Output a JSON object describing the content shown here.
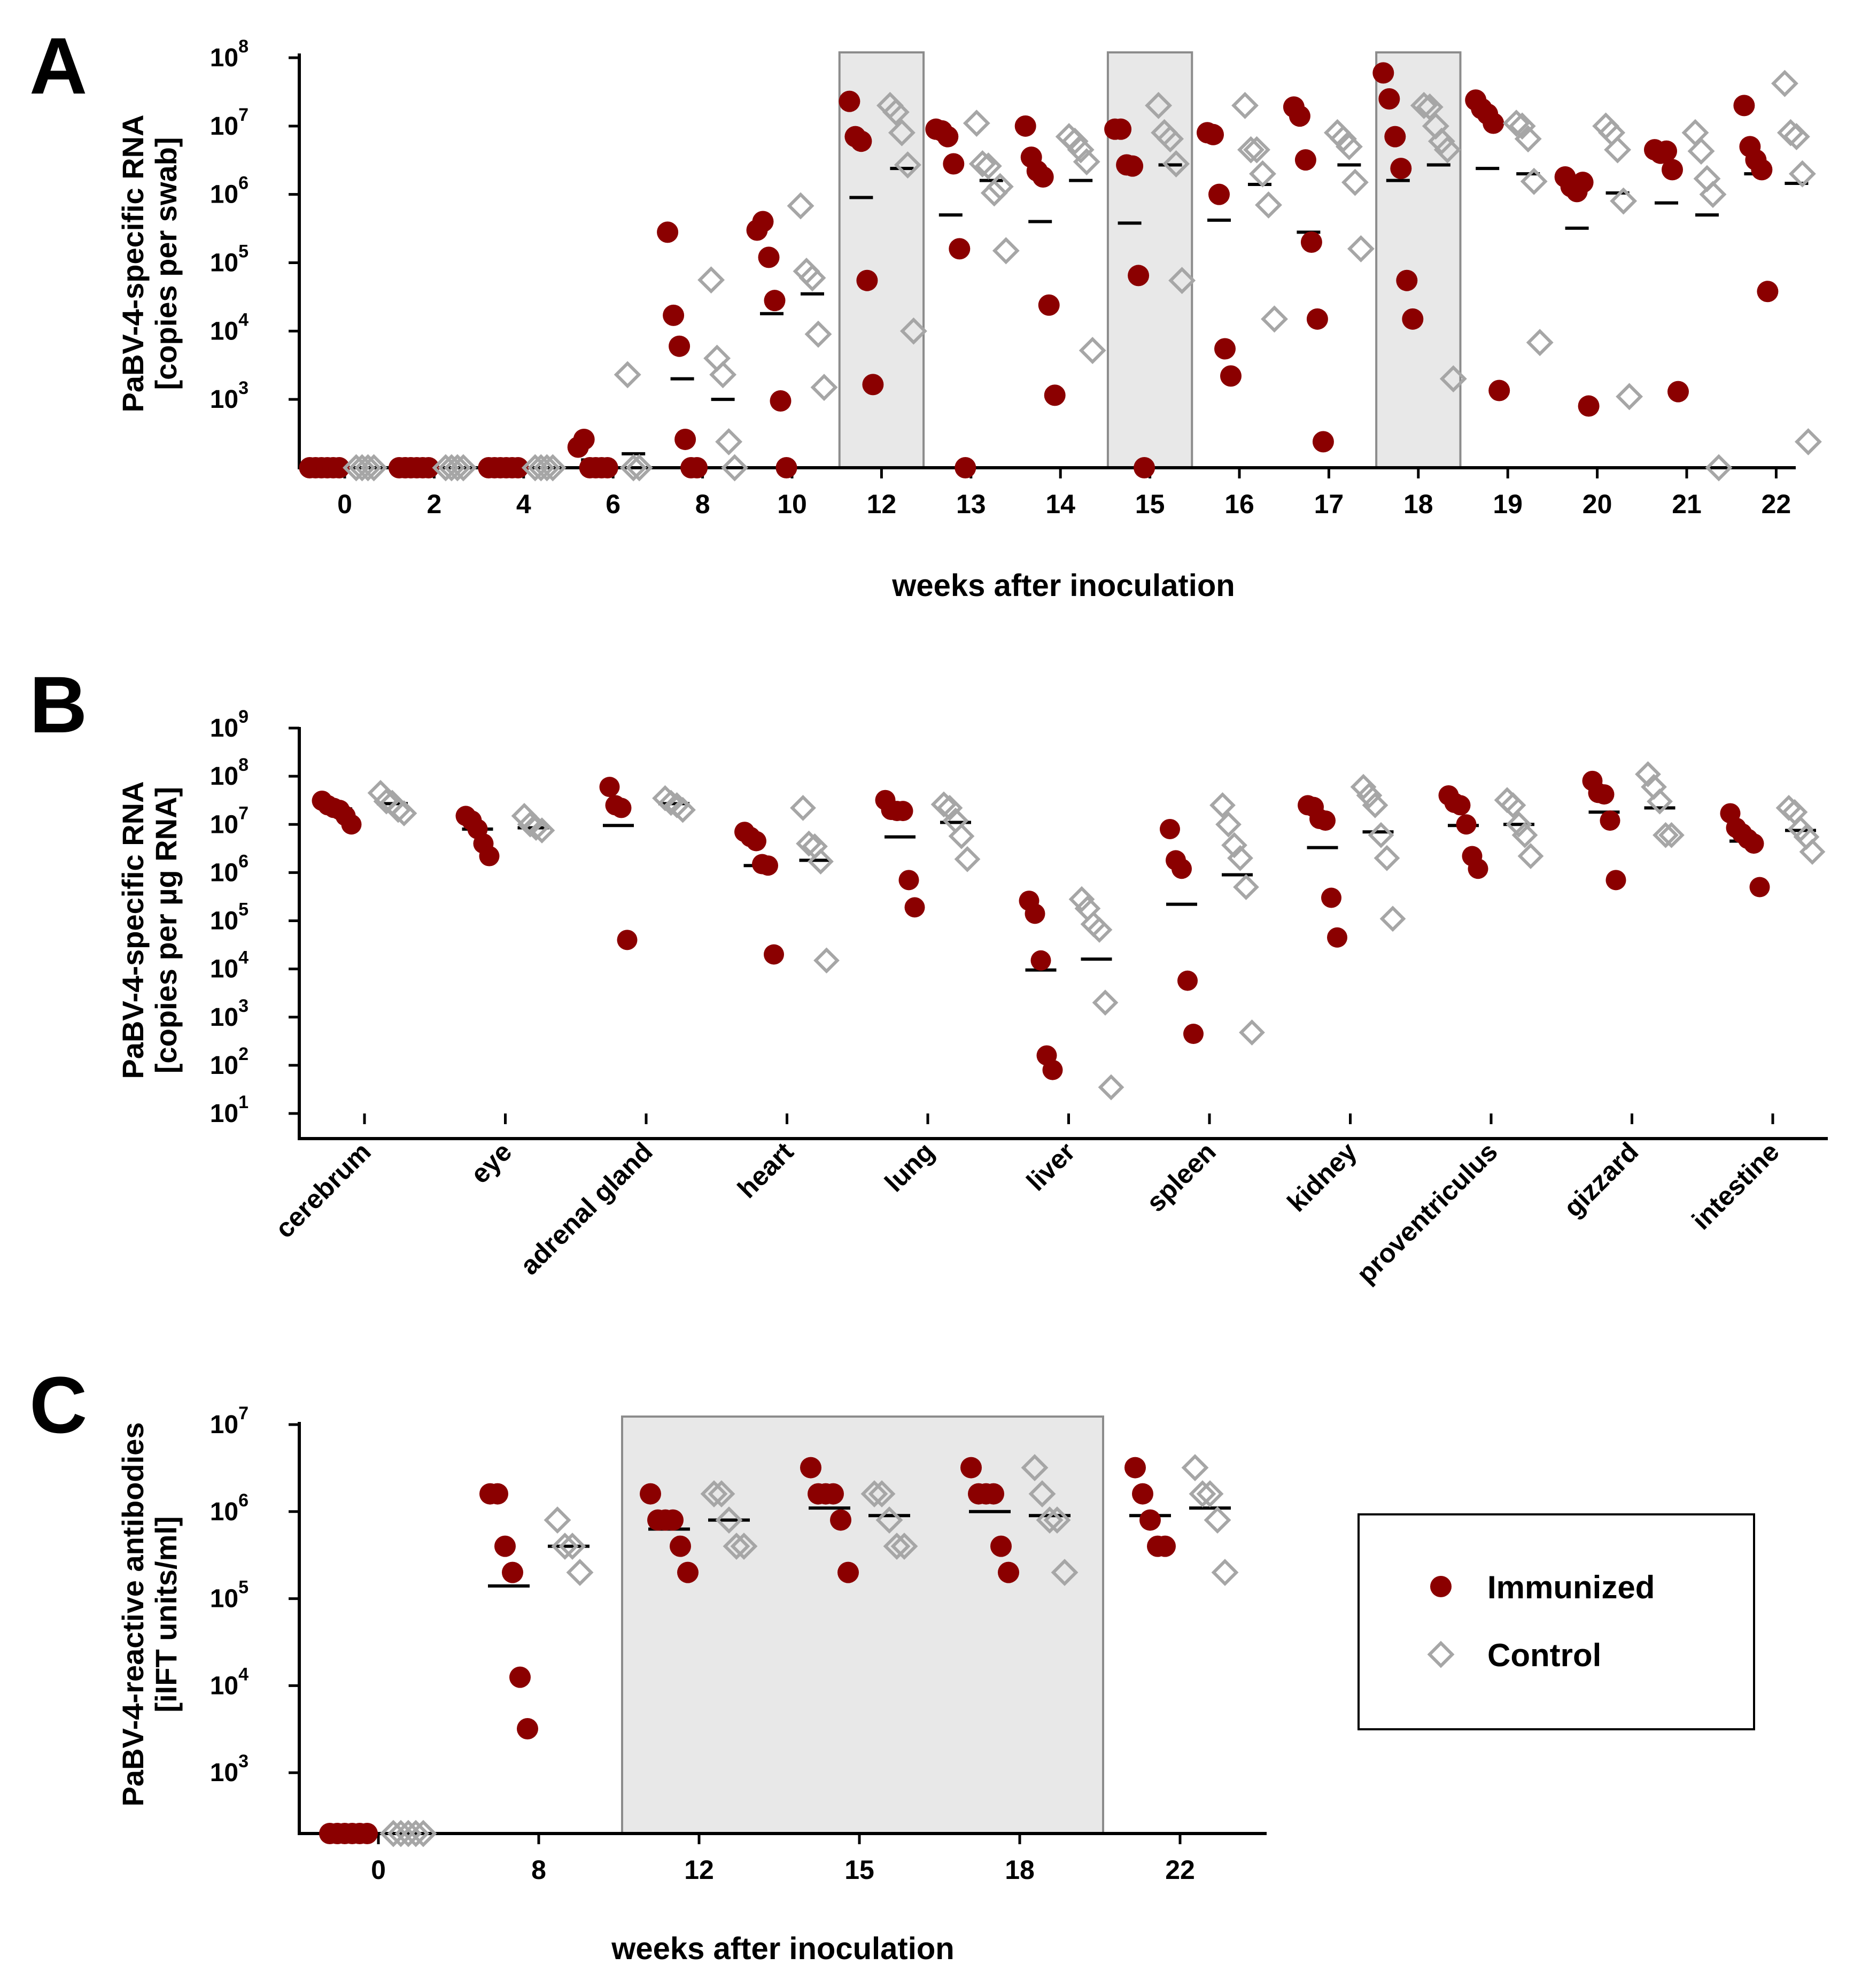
{
  "colors": {
    "immunized": "#8b0000",
    "control": "#a6a6a6",
    "shade": "#e8e8e8",
    "shade_border": "#8c8c8c",
    "median": "#000000"
  },
  "legend": {
    "immunized": "Immunized",
    "control": "Control"
  },
  "chart_data": [
    {
      "panel": "A",
      "type": "scatter",
      "title": "",
      "ylabel_line1": "PaBV-4-specific RNA",
      "ylabel_line2": "[copies per swab]",
      "xlabel": "weeks after inoculation",
      "y_scale": "log10",
      "ylim": [
        100,
        100000000
      ],
      "y_ticks": [
        {
          "base": "10",
          "exp": "8",
          "value": 100000000
        },
        {
          "base": "10",
          "exp": "7",
          "value": 10000000
        },
        {
          "base": "10",
          "exp": "6",
          "value": 1000000
        },
        {
          "base": "10",
          "exp": "5",
          "value": 100000
        },
        {
          "base": "10",
          "exp": "4",
          "value": 10000
        },
        {
          "base": "10",
          "exp": "3",
          "value": 1000
        }
      ],
      "categories": [
        "0",
        "2",
        "4",
        "6",
        "8",
        "10",
        "12",
        "13",
        "14",
        "15",
        "16",
        "17",
        "18",
        "19",
        "20",
        "21",
        "22"
      ],
      "shaded_categories": [
        "12",
        "15",
        "18"
      ],
      "series": [
        {
          "name": "Immunized",
          "values": [
            [
              0,
              0,
              0,
              0,
              0,
              0
            ],
            [
              0,
              0,
              0,
              0,
              0,
              0
            ],
            [
              0,
              0,
              0,
              0,
              0,
              0
            ],
            [
              200,
              260,
              0,
              0,
              0,
              0
            ],
            [
              280000,
              17000,
              6000,
              260,
              0,
              0
            ],
            [
              300000,
              400000,
              120000,
              28000,
              950,
              0
            ],
            [
              23000000,
              7000000,
              6000000,
              55000,
              1650,
              null
            ],
            [
              9000000,
              8500000,
              7000000,
              2800000,
              160000,
              0
            ],
            [
              10000000,
              3500000,
              2200000,
              1800000,
              24000,
              1150
            ],
            [
              9000000,
              9000000,
              2700000,
              2600000,
              65000,
              0
            ],
            [
              8000000,
              7500000,
              1000000,
              5500,
              2200,
              null
            ],
            [
              19000000,
              14000000,
              3200000,
              200000,
              15000,
              240
            ],
            [
              60000000,
              25000000,
              7000000,
              2400000,
              55000,
              15000
            ],
            [
              24000000,
              18000000,
              15000000,
              11000000,
              1350,
              null
            ],
            [
              1800000,
              1300000,
              1100000,
              1500000,
              800,
              null
            ],
            [
              4500000,
              4000000,
              4300000,
              2300000,
              1300,
              null
            ],
            [
              20000000,
              5000000,
              3200000,
              2300000,
              38000,
              null
            ]
          ],
          "medians": [
            null,
            null,
            null,
            130,
            2000,
            18000,
            900000,
            500000,
            400000,
            380000,
            420000,
            280000,
            1600000,
            2400000,
            320000,
            750000,
            2000000
          ]
        },
        {
          "name": "Control",
          "values": [
            [
              0,
              0,
              0,
              0
            ],
            [
              0,
              0,
              0,
              0
            ],
            [
              0,
              0,
              0,
              0
            ],
            [
              2300,
              0,
              0,
              null
            ],
            [
              56000,
              4000,
              2300,
              240,
              0
            ],
            [
              680000,
              75000,
              60000,
              9000,
              1500
            ],
            [
              20000000,
              16000000,
              8000000,
              2700000,
              10000
            ],
            [
              11000000,
              2800000,
              2600000,
              1050000,
              1300000,
              150000
            ],
            [
              7000000,
              6000000,
              4500000,
              3000000,
              5200
            ],
            [
              20000000,
              8000000,
              6500000,
              2800000,
              55000
            ],
            [
              20000000,
              4500000,
              4500000,
              2000000,
              700000,
              15000
            ],
            [
              8000000,
              6500000,
              5000000,
              1500000,
              160000
            ],
            [
              20000000,
              19000000,
              10000000,
              6000000,
              4500000,
              2000
            ],
            [
              11000000,
              10000000,
              6500000,
              1550000,
              6800
            ],
            [
              10000000,
              8000000,
              4500000,
              800000,
              1100
            ],
            [
              8000000,
              4300000,
              1700000,
              1000000,
              0
            ],
            [
              42000000,
              8000000,
              7000000,
              2000000,
              240
            ]
          ],
          "medians": [
            null,
            null,
            null,
            160,
            1000,
            35000,
            2400000,
            1600000,
            1600000,
            2700000,
            1400000,
            2700000,
            2700000,
            2000000,
            1050000,
            500000,
            1450000
          ]
        }
      ]
    },
    {
      "panel": "B",
      "type": "scatter",
      "title": "",
      "ylabel_line1": "PaBV-4-specific RNA",
      "ylabel_line2": "[copies per µg RNA]",
      "xlabel": "",
      "y_scale": "log10",
      "ylim": [
        10,
        1000000000
      ],
      "y_ticks": [
        {
          "base": "10",
          "exp": "9",
          "value": 1000000000
        },
        {
          "base": "10",
          "exp": "8",
          "value": 100000000
        },
        {
          "base": "10",
          "exp": "7",
          "value": 10000000
        },
        {
          "base": "10",
          "exp": "6",
          "value": 1000000
        },
        {
          "base": "10",
          "exp": "5",
          "value": 100000
        },
        {
          "base": "10",
          "exp": "4",
          "value": 10000
        },
        {
          "base": "10",
          "exp": "3",
          "value": 1000
        },
        {
          "base": "10",
          "exp": "2",
          "value": 100
        },
        {
          "base": "10",
          "exp": "1",
          "value": 10
        }
      ],
      "categories": [
        "cerebrum",
        "eye",
        "adrenal gland",
        "heart",
        "lung",
        "liver",
        "spleen",
        "kidney",
        "proventriculus",
        "gizzard",
        "intestine"
      ],
      "series": [
        {
          "name": "Immunized",
          "values": [
            [
              31000000,
              25000000,
              22000000,
              20000000,
              15000000,
              10000000
            ],
            [
              15000000,
              12000000,
              8000000,
              4000000,
              2200000
            ],
            [
              60000000,
              25000000,
              22000000,
              40000
            ],
            [
              7000000,
              5500000,
              4500000,
              1500000,
              1400000,
              20000
            ],
            [
              32000000,
              20000000,
              19000000,
              19000000,
              700000,
              190000
            ],
            [
              260000,
              140000,
              15000,
              160,
              80
            ],
            [
              8000000,
              1800000,
              1200000,
              5700,
              450
            ],
            [
              25000000,
              23000000,
              13000000,
              12000000,
              300000,
              45000
            ],
            [
              40000000,
              28000000,
              25000000,
              10000000,
              2200000,
              1200000
            ],
            [
              80000000,
              45000000,
              42000000,
              12000000,
              700000
            ],
            [
              17000000,
              8500000,
              6500000,
              5000000,
              4000000,
              500000
            ]
          ],
          "medians": [
            21000000,
            8000000,
            9500000,
            1400000,
            5500000,
            9500,
            220000,
            3300000,
            9500000,
            18000000,
            4500000
          ]
        },
        {
          "name": "Control",
          "values": [
            [
              45000000,
              30000000,
              28000000,
              20000000,
              17000000
            ],
            [
              15000000,
              10000000,
              8500000,
              7500000
            ],
            [
              35000000,
              28000000,
              25000000,
              20000000
            ],
            [
              22000000,
              4000000,
              3500000,
              1700000,
              15000
            ],
            [
              26000000,
              22000000,
              12000000,
              5700000,
              1900000
            ],
            [
              280000,
              180000,
              85000,
              65000,
              2000,
              35
            ],
            [
              25000000,
              10000000,
              3700000,
              2000000,
              500000,
              480
            ],
            [
              60000000,
              40000000,
              25000000,
              6000000,
              2000000,
              110000
            ],
            [
              32000000,
              25000000,
              10000000,
              6000000,
              2200000
            ],
            [
              110000000,
              60000000,
              30000000,
              6000000,
              6000000
            ],
            [
              22000000,
              18000000,
              8000000,
              5500000,
              2700000
            ]
          ],
          "medians": [
            27000000,
            8500000,
            27000000,
            1800000,
            11000000,
            16000,
            900000,
            7000000,
            10000000,
            22000000,
            7500000
          ]
        }
      ]
    },
    {
      "panel": "C",
      "type": "scatter",
      "title": "",
      "ylabel_line1": "PaBV-4-reactive antibodies",
      "ylabel_line2": "[iIFT units/ml]",
      "xlabel": "weeks after inoculation",
      "y_scale": "log10",
      "ylim": [
        200,
        10000000
      ],
      "y_ticks": [
        {
          "base": "10",
          "exp": "7",
          "value": 10000000
        },
        {
          "base": "10",
          "exp": "6",
          "value": 1000000
        },
        {
          "base": "10",
          "exp": "5",
          "value": 100000
        },
        {
          "base": "10",
          "exp": "4",
          "value": 10000
        },
        {
          "base": "10",
          "exp": "3",
          "value": 1000
        }
      ],
      "categories": [
        "0",
        "8",
        "12",
        "15",
        "18",
        "22"
      ],
      "shaded_range": [
        "12",
        "18"
      ],
      "series": [
        {
          "name": "Immunized",
          "values": [
            [
              0,
              0,
              0,
              0,
              0,
              0
            ],
            [
              1600000,
              1600000,
              400000,
              200000,
              12500,
              3200
            ],
            [
              1600000,
              800000,
              800000,
              800000,
              400000,
              200000
            ],
            [
              3200000,
              1600000,
              1600000,
              1600000,
              800000,
              200000
            ],
            [
              3200000,
              1600000,
              1600000,
              1600000,
              400000,
              200000
            ],
            [
              3200000,
              1600000,
              800000,
              400000,
              400000
            ]
          ],
          "medians": [
            null,
            140000,
            630000,
            1100000,
            1000000,
            900000
          ]
        },
        {
          "name": "Control",
          "values": [
            [
              0,
              0,
              0,
              0,
              0
            ],
            [
              800000,
              400000,
              400000,
              200000
            ],
            [
              1600000,
              1600000,
              800000,
              400000,
              400000
            ],
            [
              1600000,
              1600000,
              800000,
              400000,
              400000
            ],
            [
              3200000,
              1600000,
              800000,
              800000,
              200000
            ],
            [
              3200000,
              1600000,
              1600000,
              800000,
              200000
            ]
          ],
          "medians": [
            null,
            400000,
            800000,
            900000,
            900000,
            1100000
          ]
        }
      ]
    }
  ]
}
